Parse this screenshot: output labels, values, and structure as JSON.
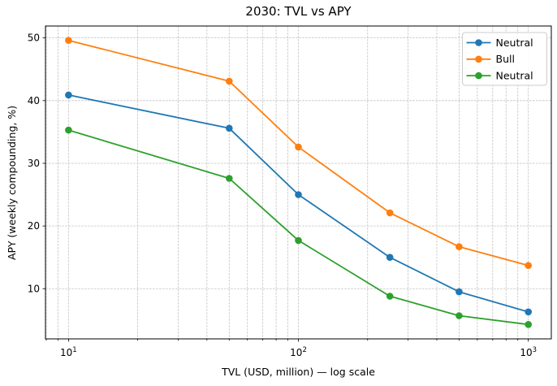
{
  "title": "2030: TVL vs APY",
  "chart_data": {
    "type": "line",
    "title": "2030: TVL vs APY",
    "xlabel": "TVL (USD, million) — log scale",
    "ylabel": "APY (weekly compounding, %)",
    "x_scale": "log",
    "grid": true,
    "x": [
      10,
      50,
      100,
      250,
      500,
      1000
    ],
    "series": [
      {
        "name": "Neutral",
        "color": "#1f77b4",
        "values": [
          40.9,
          35.6,
          25.0,
          15.0,
          9.5,
          6.3
        ]
      },
      {
        "name": "Bull",
        "color": "#ff7f0e",
        "values": [
          49.6,
          43.1,
          32.6,
          22.1,
          16.7,
          13.7
        ]
      },
      {
        "name": "Neutral",
        "color": "#2ca02c",
        "values": [
          35.3,
          27.6,
          17.7,
          8.8,
          5.7,
          4.3
        ]
      }
    ],
    "xlim": [
      7.94,
      1259
    ],
    "ylim": [
      2.0,
      51.9
    ],
    "y_ticks": [
      10,
      20,
      30,
      40,
      50
    ],
    "x_major_ticks": [
      10,
      100,
      1000
    ],
    "x_tick_labels": [
      {
        "mantissa": "10",
        "exponent": "1"
      },
      {
        "mantissa": "10",
        "exponent": "2"
      },
      {
        "mantissa": "10",
        "exponent": "3"
      }
    ],
    "legend": {
      "position": "upper right",
      "entries": [
        "Neutral",
        "Bull",
        "Neutral"
      ]
    },
    "colors": {
      "grid": "#c4c4c4",
      "spine": "#000000",
      "legend_border": "#cccccc",
      "background": "#ffffff"
    }
  }
}
